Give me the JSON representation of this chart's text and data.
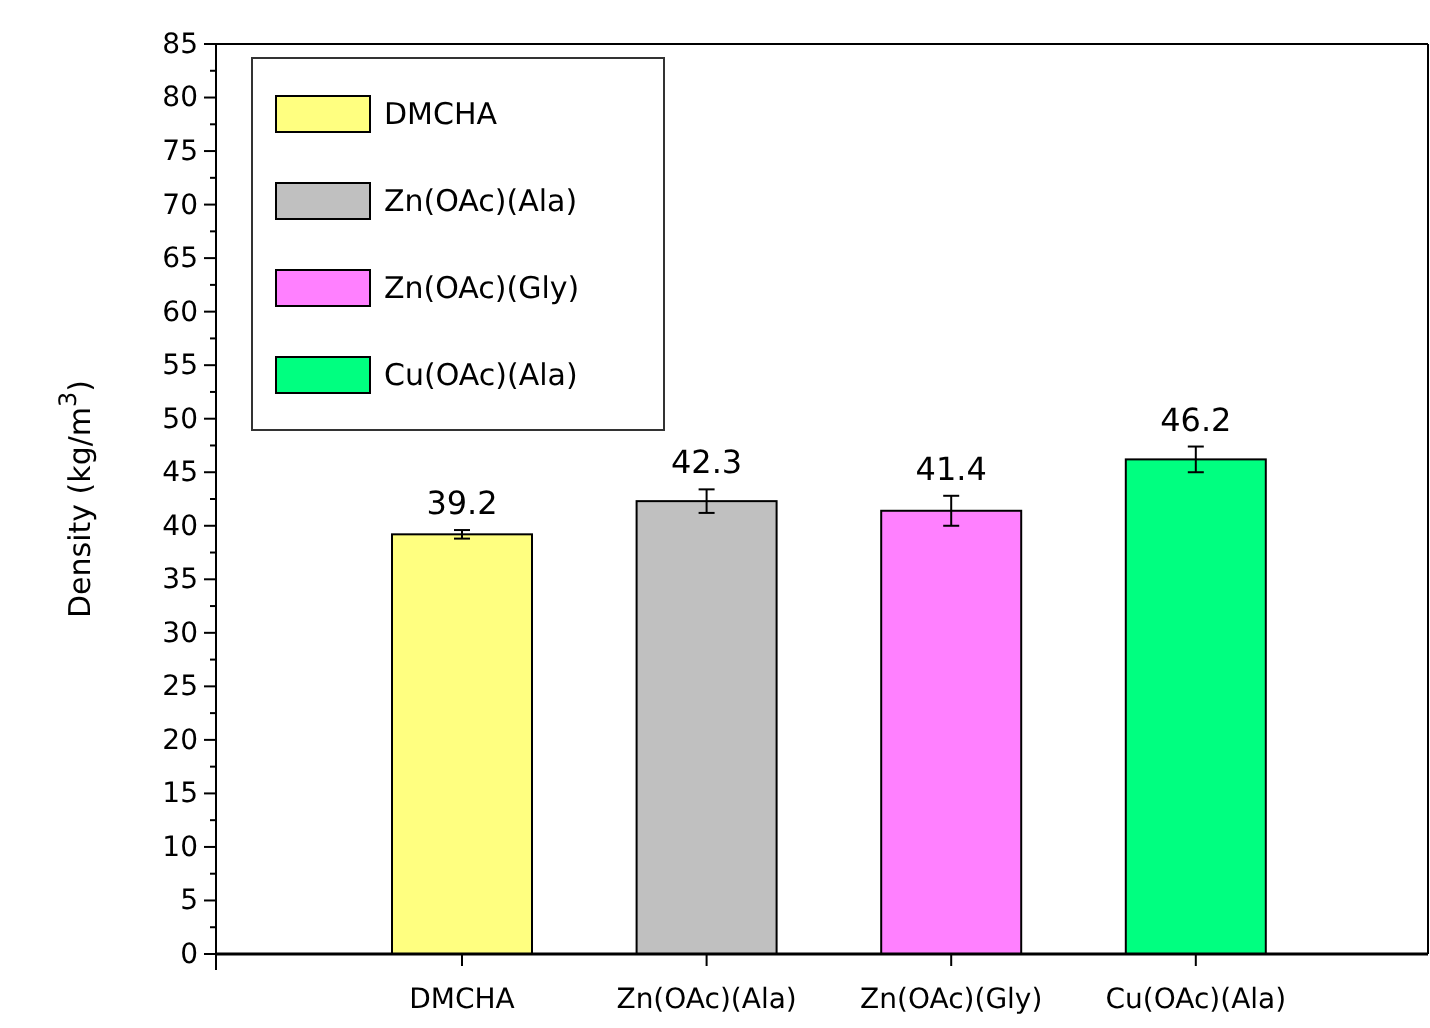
{
  "chart_data": {
    "type": "bar",
    "ylabel": "Density (kg/m$^{3}$)",
    "categories": [
      "DMCHA",
      "Zn(OAc)(Ala)",
      "Zn(OAc)(Gly)",
      "Cu(OAc)(Ala)"
    ],
    "series": [
      {
        "name": "DMCHA",
        "color": "#ffff80",
        "values": [
          39.2,
          null,
          null,
          null
        ],
        "errors": [
          0.4,
          null,
          null,
          null
        ]
      },
      {
        "name": "Zn(OAc)(Ala)",
        "color": "#c0c0c0",
        "values": [
          null,
          42.3,
          null,
          null
        ],
        "errors": [
          null,
          1.1,
          null,
          null
        ]
      },
      {
        "name": "Zn(OAc)(Gly)",
        "color": "#ff80ff",
        "values": [
          null,
          null,
          41.4,
          null
        ],
        "errors": [
          null,
          null,
          1.4,
          null
        ]
      },
      {
        "name": "Cu(OAc)(Ala)",
        "color": "#00ff80",
        "values": [
          null,
          null,
          null,
          46.2
        ],
        "errors": [
          null,
          null,
          null,
          1.2
        ]
      }
    ],
    "ylim": [
      0,
      85
    ],
    "yticks": [
      0,
      5,
      10,
      15,
      20,
      25,
      30,
      35,
      40,
      45,
      50,
      55,
      60,
      65,
      70,
      75,
      80,
      85
    ],
    "data_labels": true,
    "legend": "top left"
  }
}
